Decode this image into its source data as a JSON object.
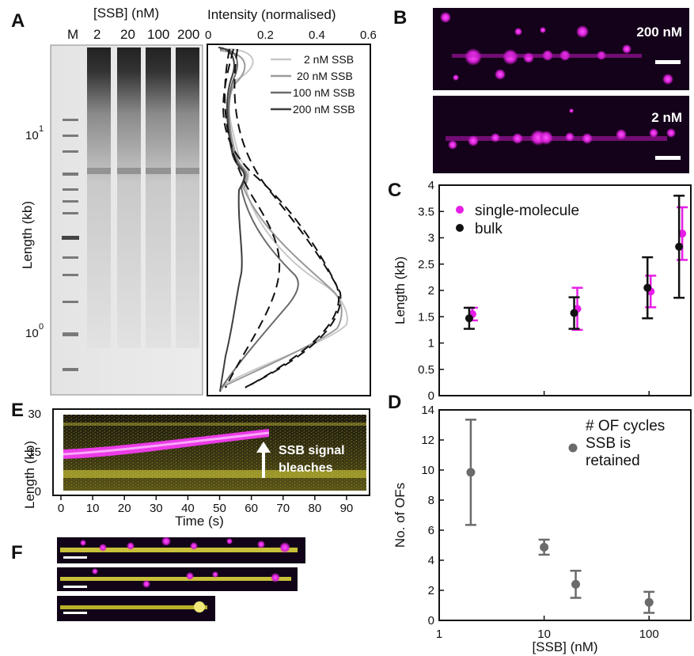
{
  "panels": {
    "a": "A",
    "b": "B",
    "c": "C",
    "d": "D",
    "e": "E",
    "f": "F"
  },
  "gel": {
    "title": "[SSB] (nM)",
    "lanes": [
      "M",
      "2",
      "20",
      "100",
      "200"
    ],
    "ylabel": "Length (kb)",
    "yticks": [
      "10",
      "10"
    ],
    "ytick_exps": [
      "1",
      "0"
    ]
  },
  "profile": {
    "xlabel": "Intensity (normalised)",
    "xticks": [
      "0",
      "0.2",
      "0.4",
      "0.6"
    ],
    "legend": [
      "2 nM SSB",
      "20 nM SSB",
      "100 nM SSB",
      "200 nM SSB"
    ],
    "legend_colors": [
      "#c8c8c8",
      "#9a9a9a",
      "#6b6b6b",
      "#3d3d3d"
    ]
  },
  "images_b": {
    "top_label": "200 nM",
    "bottom_label": "2 nM"
  },
  "chart_data": [
    {
      "type": "scatter",
      "panel": "C",
      "ylabel": "Length (kb)",
      "ylim": [
        0,
        4
      ],
      "yticks": [
        "0",
        "0.5",
        "1",
        "1.5",
        "2",
        "2.5",
        "3",
        "3.5",
        "4"
      ],
      "xscale": "log",
      "xlim": [
        1,
        250
      ],
      "series": [
        {
          "name": "single-molecule",
          "color": "#e61ee6",
          "x": [
            2,
            20,
            100,
            200
          ],
          "y": [
            1.55,
            1.65,
            1.98,
            3.08
          ],
          "err": [
            0.12,
            0.4,
            0.3,
            0.5
          ]
        },
        {
          "name": "bulk",
          "color": "#111111",
          "x": [
            2,
            20,
            100,
            200
          ],
          "y": [
            1.47,
            1.57,
            2.05,
            2.83
          ],
          "err": [
            0.2,
            0.3,
            0.58,
            0.97
          ]
        }
      ],
      "legend": "top-left"
    },
    {
      "type": "scatter",
      "panel": "D",
      "ylabel": "No. of OFs",
      "xlabel": "[SSB] (nM)",
      "ylim": [
        0,
        14
      ],
      "yticks": [
        "0",
        "2",
        "4",
        "6",
        "8",
        "10",
        "12",
        "14"
      ],
      "xscale": "log",
      "xlim": [
        1,
        250
      ],
      "xticks": [
        "1",
        "10",
        "100"
      ],
      "series": [
        {
          "name": "# OF cycles\nSSB is\nretained",
          "color": "#6b6b6b",
          "x": [
            2,
            10,
            20,
            100
          ],
          "y": [
            9.85,
            4.87,
            2.4,
            1.2
          ],
          "err": [
            3.5,
            0.5,
            0.9,
            0.7
          ]
        }
      ],
      "legend": "top-right"
    }
  ],
  "kymo": {
    "ylabel": "Length (kb)",
    "yticks": [
      "30",
      "15",
      "0"
    ],
    "xlabel": "Time (s)",
    "xticks": [
      "0",
      "10",
      "20",
      "30",
      "40",
      "50",
      "60",
      "70",
      "80",
      "90"
    ],
    "annotation": [
      "SSB signal",
      "bleaches"
    ]
  },
  "legend_d": [
    "# OF cycles",
    "SSB is",
    "retained"
  ]
}
